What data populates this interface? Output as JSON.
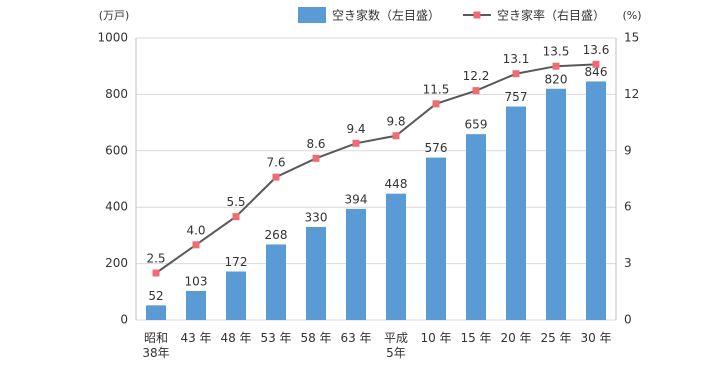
{
  "chart_data": {
    "type": "bar",
    "categories": [
      "昭和\n38年",
      "43 年",
      "48 年",
      "53 年",
      "58 年",
      "63 年",
      "平成\n5年",
      "10 年",
      "15 年",
      "20 年",
      "25 年",
      "30 年"
    ],
    "series": [
      {
        "name": "空き家数（左目盛）",
        "type": "bar",
        "color": "#5b9bd5",
        "values": [
          52,
          103,
          172,
          268,
          330,
          394,
          448,
          576,
          659,
          757,
          820,
          846
        ]
      },
      {
        "name": "空き家率（右目盛）",
        "type": "line",
        "axis": "y2",
        "color": "#595959",
        "marker_color": "#f06b74",
        "values": [
          2.5,
          4.0,
          5.5,
          7.6,
          8.6,
          9.4,
          9.8,
          11.5,
          12.2,
          13.1,
          13.5,
          13.6
        ],
        "value_labels": [
          "2.5",
          "4.0",
          "5.5",
          "7.6",
          "8.6",
          "9.4",
          "9.8",
          "11.5",
          "12.2",
          "13.1",
          "13.5",
          "13.6"
        ]
      }
    ],
    "y_label": "(万戸)",
    "y2_label": "(%)",
    "ylim": [
      0,
      1000
    ],
    "yticks": [
      0,
      200,
      400,
      600,
      800,
      1000
    ],
    "y2lim": [
      0,
      15
    ],
    "y2ticks": [
      0,
      3,
      6,
      9,
      12,
      15
    ],
    "grid": true
  }
}
